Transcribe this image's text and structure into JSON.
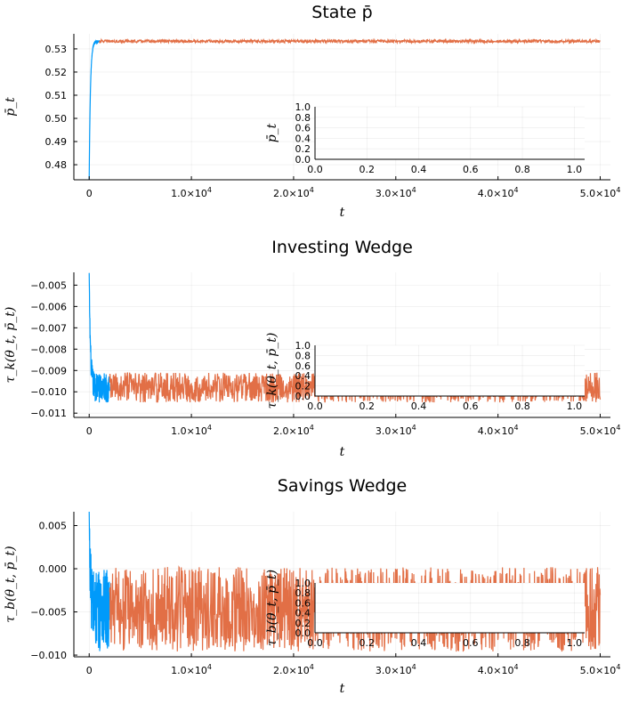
{
  "colors": {
    "series1": "#009AFA",
    "series2": "#E26F46"
  },
  "chart_data": [
    {
      "type": "line",
      "title": "State p̄",
      "xlabel": "t",
      "ylabel": "p̄_t",
      "xlim": [
        -1500,
        51000
      ],
      "ylim": [
        0.4735,
        0.5365
      ],
      "xticks": [
        {
          "value": 0,
          "label": "0"
        },
        {
          "value": 10000,
          "label": "1.0×10",
          "exp": "4"
        },
        {
          "value": 20000,
          "label": "2.0×10",
          "exp": "4"
        },
        {
          "value": 30000,
          "label": "3.0×10",
          "exp": "4"
        },
        {
          "value": 40000,
          "label": "4.0×10",
          "exp": "4"
        },
        {
          "value": 50000,
          "label": "5.0×10",
          "exp": "4"
        }
      ],
      "yticks": [
        {
          "value": 0.48,
          "label": "0.48"
        },
        {
          "value": 0.49,
          "label": "0.49"
        },
        {
          "value": 0.5,
          "label": "0.50"
        },
        {
          "value": 0.51,
          "label": "0.51"
        },
        {
          "value": 0.52,
          "label": "0.52"
        },
        {
          "value": 0.53,
          "label": "0.53"
        }
      ],
      "grid": true,
      "series": [
        {
          "color": "series1",
          "x_range": [
            0,
            1000
          ],
          "start": 0.4735,
          "level": 0.5333,
          "band": 0.0006,
          "transient": "rise"
        },
        {
          "color": "series2",
          "x_range": [
            1000,
            50000
          ],
          "level": 0.5333,
          "band": 0.0006
        }
      ],
      "inset": {
        "ylabel": "p̄_t",
        "xlim": [
          0,
          1.04
        ],
        "ylim": [
          0,
          1.0
        ],
        "xticks": [
          "0.0",
          "0.2",
          "0.4",
          "0.6",
          "0.8",
          "1.0"
        ],
        "yticks": [
          "0.0",
          "0.2",
          "0.4",
          "0.6",
          "0.8",
          "1.0"
        ]
      }
    },
    {
      "type": "line",
      "title": "Investing Wedge",
      "xlabel": "t",
      "ylabel": "τ_k(θ_t, p̄_t)",
      "xlim": [
        -1500,
        51000
      ],
      "ylim": [
        -0.0112,
        -0.0044
      ],
      "xticks": [
        {
          "value": 0,
          "label": "0"
        },
        {
          "value": 10000,
          "label": "1.0×10",
          "exp": "4"
        },
        {
          "value": 20000,
          "label": "2.0×10",
          "exp": "4"
        },
        {
          "value": 30000,
          "label": "3.0×10",
          "exp": "4"
        },
        {
          "value": 40000,
          "label": "4.0×10",
          "exp": "4"
        },
        {
          "value": 50000,
          "label": "5.0×10",
          "exp": "4"
        }
      ],
      "yticks": [
        {
          "value": -0.005,
          "label": "−0.005"
        },
        {
          "value": -0.006,
          "label": "−0.006"
        },
        {
          "value": -0.007,
          "label": "−0.007"
        },
        {
          "value": -0.008,
          "label": "−0.008"
        },
        {
          "value": -0.009,
          "label": "−0.009"
        },
        {
          "value": -0.01,
          "label": "−0.010"
        },
        {
          "value": -0.011,
          "label": "−0.011"
        }
      ],
      "grid": true,
      "series": [
        {
          "color": "series1",
          "x_range": [
            0,
            2000
          ],
          "start": -0.0045,
          "level": -0.0098,
          "band": 0.0007,
          "transient": "decay"
        },
        {
          "color": "series2",
          "x_range": [
            2000,
            50000
          ],
          "level": -0.0098,
          "band": 0.0007
        }
      ],
      "inset": {
        "ylabel": "τ_k(θ_t, p̄_t)",
        "xlim": [
          0,
          1.04
        ],
        "ylim": [
          0,
          1.0
        ],
        "xticks": [
          "0.0",
          "0.2",
          "0.4",
          "0.6",
          "0.8",
          "1.0"
        ],
        "yticks": [
          "0.0",
          "0.2",
          "0.4",
          "0.6",
          "0.8",
          "1.0"
        ]
      }
    },
    {
      "type": "line",
      "title": "Savings Wedge",
      "xlabel": "t",
      "ylabel": "τ_b(θ_t, p̄_t)",
      "xlim": [
        -1500,
        51000
      ],
      "ylim": [
        -0.0102,
        0.0066
      ],
      "xticks": [
        {
          "value": 0,
          "label": "0"
        },
        {
          "value": 10000,
          "label": "1.0×10",
          "exp": "4"
        },
        {
          "value": 20000,
          "label": "2.0×10",
          "exp": "4"
        },
        {
          "value": 30000,
          "label": "3.0×10",
          "exp": "4"
        },
        {
          "value": 40000,
          "label": "4.0×10",
          "exp": "4"
        },
        {
          "value": 50000,
          "label": "5.0×10",
          "exp": "4"
        }
      ],
      "yticks": [
        {
          "value": 0.005,
          "label": "0.005"
        },
        {
          "value": 0.0,
          "label": "0.000"
        },
        {
          "value": -0.005,
          "label": "−0.005"
        },
        {
          "value": -0.01,
          "label": "−0.010"
        }
      ],
      "grid": true,
      "series": [
        {
          "color": "series1",
          "x_range": [
            0,
            2000
          ],
          "start": 0.0062,
          "level": -0.0048,
          "band": 0.0048,
          "transient": "decay"
        },
        {
          "color": "series2",
          "x_range": [
            2000,
            50000
          ],
          "level": -0.0047,
          "band": 0.0049
        }
      ],
      "inset": {
        "ylabel": "τ_b(θ_t, p̄_t)",
        "xlim": [
          0,
          1.04
        ],
        "ylim": [
          0,
          1.0
        ],
        "xticks": [
          "0.0",
          "0.2",
          "0.4",
          "0.6",
          "0.8",
          "1.0"
        ],
        "yticks": [
          "0.0",
          "0.2",
          "0.4",
          "0.6",
          "0.8",
          "1.0"
        ]
      }
    }
  ]
}
